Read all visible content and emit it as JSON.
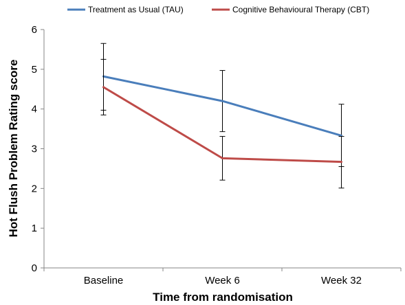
{
  "chart_data": {
    "type": "line",
    "xlabel": "Time from randomisation",
    "ylabel": "Hot Flush Problem Rating score",
    "categories": [
      "Baseline",
      "Week 6",
      "Week 32"
    ],
    "ylim": [
      0,
      6
    ],
    "yticks": [
      "0",
      "1",
      "2",
      "3",
      "4",
      "5",
      "6"
    ],
    "grid": false,
    "legend_position": "top",
    "series": [
      {
        "name": "Treatment as Usual (TAU)",
        "color": "#4a7ebb",
        "values": [
          4.82,
          4.2,
          3.33
        ],
        "error_low": [
          3.97,
          3.43,
          2.55
        ],
        "error_high": [
          5.65,
          4.97,
          4.12
        ]
      },
      {
        "name": "Cognitive Behavioural Therapy (CBT)",
        "color": "#be4b48",
        "values": [
          4.55,
          2.76,
          2.67
        ],
        "error_low": [
          3.85,
          2.21,
          2.01
        ],
        "error_high": [
          5.25,
          3.31,
          3.31
        ]
      }
    ]
  }
}
